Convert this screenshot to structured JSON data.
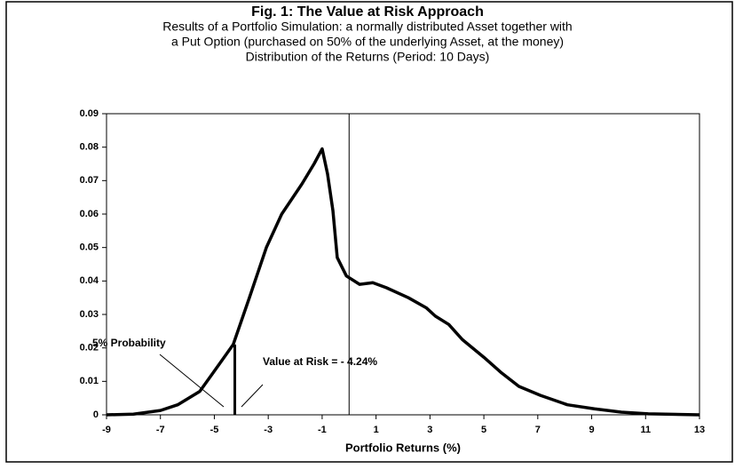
{
  "chart_data": {
    "type": "line",
    "title": "Fig. 1: The Value at Risk Approach",
    "subtitle": [
      "Results of a Portfolio Simulation: a normally distributed Asset together with",
      "a Put Option (purchased on 50% of the underlying Asset, at the money)",
      "Distribution of the Returns (Period: 10 Days)"
    ],
    "x_label": "Portfolio Returns (%)",
    "x": [
      -9,
      -8,
      -7,
      -6.36,
      -5.54,
      -5.05,
      -4.3,
      -3.7,
      -3.07,
      -2.5,
      -1.75,
      -1.3,
      -1.0,
      -0.8,
      -0.6,
      -0.44,
      -0.1,
      0.39,
      0.88,
      1.38,
      2.2,
      2.86,
      3.2,
      3.7,
      4.2,
      5.0,
      5.66,
      6.3,
      7.1,
      8.1,
      9.1,
      10.1,
      11.1,
      13
    ],
    "series": [
      {
        "color": "#000000",
        "values": [
          0,
          0.0002,
          0.0013,
          0.003,
          0.007,
          0.0125,
          0.021,
          0.035,
          0.05,
          0.06,
          0.069,
          0.075,
          0.0795,
          0.072,
          0.061,
          0.047,
          0.0415,
          0.039,
          0.0395,
          0.038,
          0.035,
          0.032,
          0.0295,
          0.027,
          0.0225,
          0.0172,
          0.0125,
          0.0085,
          0.0058,
          0.003,
          0.0018,
          0.0008,
          0.0003,
          0
        ]
      }
    ],
    "xlim": [
      -9,
      13
    ],
    "xticks": [
      -9,
      -7,
      -5,
      -3,
      -1,
      1,
      3,
      5,
      7,
      9,
      11,
      13
    ],
    "ylim": [
      0,
      0.09
    ],
    "yticks": [
      0,
      0.01,
      0.02,
      0.03,
      0.04,
      0.05,
      0.06,
      0.07,
      0.08,
      0.09
    ],
    "reference_line_x": 0,
    "var_line": {
      "x": -4.24,
      "y": 0.021
    },
    "annotations": [
      "5% Probability",
      "Value at Risk = - 4.24%"
    ]
  }
}
